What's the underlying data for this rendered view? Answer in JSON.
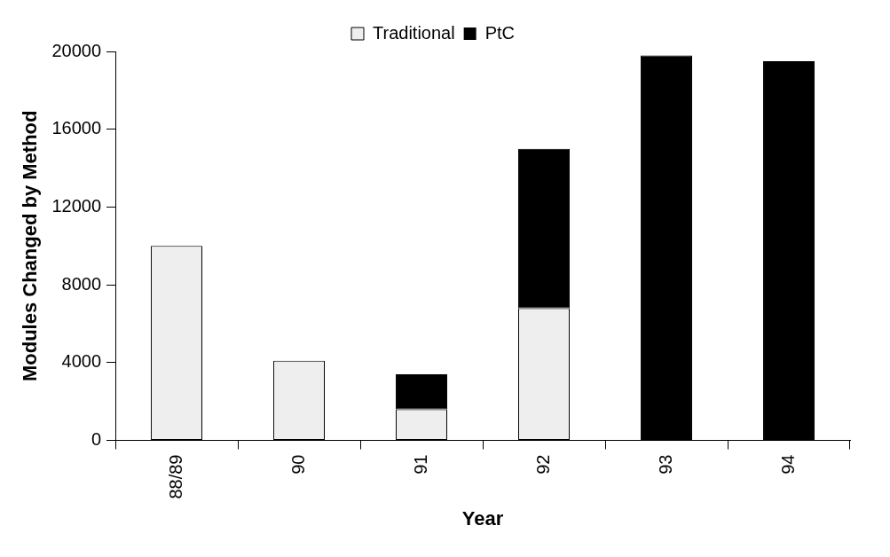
{
  "chart_data": {
    "type": "bar",
    "xlabel": "Year",
    "ylabel": "Modules Changed by Method",
    "categories": [
      "88/89",
      "90",
      "91",
      "92",
      "93",
      "94"
    ],
    "series": [
      {
        "name": "Traditional",
        "color": "#eeeeee",
        "values": [
          10000,
          4100,
          1600,
          6800,
          0,
          0
        ]
      },
      {
        "name": "PtC",
        "color": "#000000",
        "values": [
          0,
          0,
          1800,
          8200,
          19800,
          19500
        ]
      }
    ],
    "stacked": true,
    "ylim": [
      0,
      20000
    ],
    "yticks": [
      0,
      4000,
      8000,
      12000,
      16000,
      20000
    ],
    "grid": false,
    "legend": "top"
  }
}
